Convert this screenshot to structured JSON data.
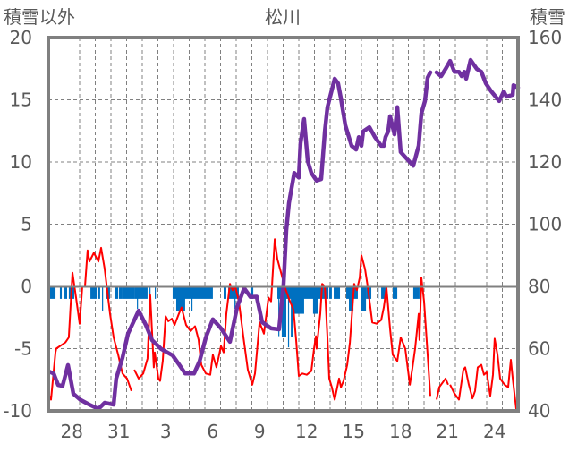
{
  "chart_data": {
    "type": "line",
    "title": "松川",
    "ylabel_left": "積雪以外",
    "ylabel_right": "積雪",
    "ylim_left": [
      -10,
      20
    ],
    "ylim_right": [
      40,
      160
    ],
    "yticks_left": [
      "20",
      "15",
      "10",
      "5",
      "0",
      "-5",
      "-10"
    ],
    "yticks_right": [
      "160",
      "140",
      "120",
      "100",
      "80",
      "60",
      "40"
    ],
    "x_range_days": [
      0,
      30
    ],
    "x_ticks": [
      {
        "pos": 1.5,
        "label": "28"
      },
      {
        "pos": 4.5,
        "label": "31"
      },
      {
        "pos": 7.5,
        "label": "3"
      },
      {
        "pos": 10.5,
        "label": "6"
      },
      {
        "pos": 13.5,
        "label": "9"
      },
      {
        "pos": 16.5,
        "label": "12"
      },
      {
        "pos": 19.5,
        "label": "15"
      },
      {
        "pos": 22.5,
        "label": "18"
      },
      {
        "pos": 25.5,
        "label": "21"
      },
      {
        "pos": 28.5,
        "label": "24"
      }
    ],
    "grid": true,
    "colors": {
      "temperature": "#ff0000",
      "snow_depth": "#7030a0",
      "precipitation": "#0070c0",
      "axis": "#808080"
    },
    "temperature": [
      [
        0,
        -8.6
      ],
      [
        0.17,
        -9.1
      ],
      [
        0.46,
        -5.3
      ],
      [
        0.51,
        -5
      ],
      [
        1.09,
        -4.5
      ],
      [
        1.31,
        -4.1
      ],
      [
        1.54,
        1.1
      ],
      [
        1.77,
        -0.9
      ],
      [
        2,
        -3
      ],
      [
        2.17,
        0
      ],
      [
        2.34,
        0
      ],
      [
        2.51,
        2.9
      ],
      [
        2.63,
        2
      ],
      [
        2.91,
        2.7
      ],
      [
        3.2,
        2
      ],
      [
        3.37,
        3.1
      ],
      [
        3.6,
        1.4
      ],
      [
        3.94,
        -2.2
      ],
      [
        4.17,
        -4.1
      ],
      [
        4.46,
        -5.5
      ],
      [
        4.74,
        -7
      ],
      [
        5.03,
        -7.4
      ],
      [
        5.31,
        -8.4
      ],
      null,
      [
        5.49,
        -6.7
      ],
      [
        5.77,
        -7.4
      ],
      [
        6.06,
        -7
      ],
      [
        6.34,
        -5.8
      ],
      [
        6.51,
        -0.7
      ],
      [
        6.74,
        -6.5
      ],
      [
        6.8,
        -5.3
      ],
      [
        7.03,
        -7.4
      ],
      [
        7.14,
        -7.6
      ],
      [
        7.31,
        -6
      ],
      [
        7.49,
        -2.4
      ],
      [
        7.66,
        -2.8
      ],
      [
        7.89,
        -2.6
      ],
      [
        8.06,
        -3.1
      ],
      [
        8.34,
        -2.2
      ],
      [
        8.51,
        -1.7
      ],
      [
        8.8,
        -3.1
      ],
      [
        9.09,
        -3.6
      ],
      [
        9.37,
        -3.2
      ],
      [
        9.6,
        -4.3
      ],
      [
        9.77,
        -6.3
      ],
      [
        10.06,
        -7
      ],
      [
        10.34,
        -7.1
      ],
      [
        10.51,
        -5.5
      ],
      [
        10.74,
        -6.5
      ],
      [
        11.03,
        -4.8
      ],
      [
        11.2,
        -5.3
      ],
      [
        11.37,
        -2.2
      ],
      [
        11.6,
        0.2
      ],
      [
        11.77,
        -0.3
      ],
      [
        11.94,
        0
      ],
      [
        12.17,
        -1.2
      ],
      [
        12.46,
        -4.1
      ],
      [
        12.74,
        -6.7
      ],
      [
        13.03,
        -7.9
      ],
      [
        13.2,
        -7
      ],
      [
        13.49,
        -2.9
      ],
      [
        13.77,
        -3.8
      ],
      [
        14.06,
        -0.9
      ],
      [
        14.23,
        -1.2
      ],
      [
        14.46,
        3.8
      ],
      [
        14.63,
        2.2
      ],
      [
        14.91,
        0.9
      ],
      [
        15.09,
        0
      ],
      [
        15.37,
        -1
      ],
      [
        15.66,
        -1.9
      ],
      [
        15.83,
        -4.3
      ],
      [
        16,
        -7.2
      ],
      [
        16.23,
        -7
      ],
      [
        16.51,
        -7.1
      ],
      [
        16.8,
        -6.8
      ],
      [
        16.97,
        -5
      ],
      [
        17.09,
        -4
      ],
      [
        17.14,
        -5
      ],
      [
        17.37,
        -2.2
      ],
      [
        17.49,
        0.2
      ],
      [
        17.66,
        0
      ],
      [
        17.83,
        -4.1
      ],
      [
        17.94,
        -7.4
      ],
      [
        18.11,
        -8.1
      ],
      [
        18.29,
        -9.1
      ],
      [
        18.57,
        -7.4
      ],
      [
        18.69,
        -8.1
      ],
      [
        18.86,
        -7.6
      ],
      [
        19.09,
        -6.3
      ],
      [
        19.26,
        -4.5
      ],
      [
        19.54,
        0.2
      ],
      [
        19.71,
        -0.3
      ],
      [
        19.89,
        0.7
      ],
      [
        20,
        2.5
      ],
      [
        20.23,
        1.4
      ],
      [
        20.4,
        0
      ],
      [
        20.69,
        -2.9
      ],
      [
        20.97,
        -3
      ],
      [
        21.26,
        -2.7
      ],
      [
        21.43,
        -1.7
      ],
      [
        21.6,
        -0.1
      ],
      [
        21.83,
        -3.4
      ],
      [
        22,
        -5.5
      ],
      [
        22.29,
        -6
      ],
      [
        22.51,
        -4.1
      ],
      [
        22.8,
        -5
      ],
      [
        23.09,
        -7.9
      ],
      [
        23.26,
        -6.5
      ],
      [
        23.43,
        -5
      ],
      [
        23.66,
        -2.2
      ],
      [
        23.71,
        -4.3
      ],
      [
        23.83,
        0.7
      ],
      [
        24,
        -1.2
      ],
      [
        24.23,
        -5.5
      ],
      [
        24.4,
        -8.8
      ],
      null,
      [
        24.8,
        -9.1
      ],
      [
        24.97,
        -8.1
      ],
      [
        25.37,
        -7.4
      ],
      [
        25.54,
        -7.9
      ],
      null,
      [
        25.66,
        -7.9
      ],
      [
        25.94,
        -8.6
      ],
      [
        26.23,
        -9.1
      ],
      [
        26.51,
        -6.7
      ],
      [
        26.63,
        -6.5
      ],
      [
        26.86,
        -7.9
      ],
      [
        27.09,
        -9
      ],
      [
        27.26,
        -8.4
      ],
      [
        27.43,
        -6.5
      ],
      [
        27.66,
        -6.3
      ],
      [
        27.83,
        -7.1
      ],
      [
        28,
        -6.9
      ],
      [
        28.23,
        -8.8
      ],
      [
        28.4,
        -7.1
      ],
      [
        28.51,
        -4.2
      ],
      [
        28.69,
        -5.5
      ],
      [
        28.86,
        -7.4
      ],
      [
        29.14,
        -7.9
      ],
      [
        29.37,
        -8.1
      ],
      [
        29.54,
        -5.9
      ],
      [
        29.66,
        -7.4
      ],
      [
        29.89,
        -9.9
      ],
      [
        30,
        -9.9
      ]
    ],
    "snow_depth": [
      [
        0.06,
        52.6
      ],
      [
        0.34,
        52
      ],
      [
        0.63,
        48.3
      ],
      [
        0.91,
        48
      ],
      [
        1.26,
        54.7
      ],
      [
        1.6,
        45.5
      ],
      [
        2.06,
        43.5
      ],
      [
        2.63,
        42
      ],
      [
        3.2,
        40.6
      ],
      [
        3.6,
        42.6
      ],
      [
        4.17,
        42
      ],
      [
        4.34,
        50.4
      ],
      [
        4.74,
        57
      ],
      [
        5.09,
        64.8
      ],
      [
        5.77,
        72.2
      ],
      [
        6.23,
        67.6
      ],
      [
        6.63,
        62.7
      ],
      [
        7.2,
        59.9
      ],
      [
        7.94,
        57.8
      ],
      [
        8.34,
        55
      ],
      [
        8.74,
        52
      ],
      [
        9.31,
        52
      ],
      [
        9.66,
        56
      ],
      [
        10.06,
        63.6
      ],
      [
        10.51,
        69.4
      ],
      [
        11.03,
        66.5
      ],
      [
        11.6,
        62.2
      ],
      [
        12.06,
        73.4
      ],
      [
        12.51,
        79.4
      ],
      [
        12.91,
        76.6
      ],
      [
        13.31,
        76.7
      ],
      [
        13.66,
        68.5
      ],
      [
        14.23,
        66.5
      ],
      [
        14.74,
        66.2
      ],
      [
        15.03,
        80.9
      ],
      [
        15.2,
        98
      ],
      [
        15.37,
        106.8
      ],
      [
        15.71,
        116.5
      ],
      [
        16,
        115
      ],
      [
        16.11,
        126
      ],
      [
        16.34,
        133.8
      ],
      [
        16.57,
        120.3
      ],
      [
        16.8,
        116.5
      ],
      [
        17.14,
        114
      ],
      [
        17.43,
        114.5
      ],
      [
        17.66,
        129.8
      ],
      [
        17.83,
        137.6
      ],
      [
        18.29,
        146.8
      ],
      [
        18.51,
        145.3
      ],
      [
        18.69,
        140.4
      ],
      [
        18.97,
        131.8
      ],
      [
        19.37,
        125.2
      ],
      [
        19.66,
        124
      ],
      [
        19.83,
        128
      ],
      [
        20,
        125.2
      ],
      [
        20.11,
        129.8
      ],
      [
        20.51,
        131.2
      ],
      [
        20.86,
        128
      ],
      [
        21.26,
        125.2
      ],
      [
        21.43,
        125.2
      ],
      [
        21.54,
        128
      ],
      [
        21.71,
        129.8
      ],
      [
        21.83,
        134.7
      ],
      [
        22.11,
        128.9
      ],
      [
        22.29,
        137.6
      ],
      [
        22.51,
        123.2
      ],
      [
        22.86,
        121.2
      ],
      [
        23.31,
        118.8
      ],
      [
        23.66,
        125.2
      ],
      [
        23.83,
        135.6
      ],
      [
        24.06,
        139.6
      ],
      [
        24.23,
        147.1
      ],
      [
        24.4,
        148.8
      ],
      null,
      [
        24.8,
        148.8
      ],
      [
        25.09,
        147.6
      ],
      [
        25.37,
        149.9
      ],
      [
        25.66,
        152.5
      ],
      [
        25.94,
        149
      ],
      [
        26.23,
        149
      ],
      [
        26.4,
        147.6
      ],
      [
        26.57,
        149
      ],
      [
        26.69,
        146.8
      ],
      [
        26.97,
        152.8
      ],
      [
        27.37,
        149.9
      ],
      [
        27.66,
        149
      ],
      [
        27.94,
        145.3
      ],
      [
        28.29,
        142.7
      ],
      [
        28.8,
        139.6
      ],
      [
        29.09,
        142.7
      ],
      [
        29.26,
        141
      ],
      [
        29.66,
        141.6
      ],
      [
        29.71,
        144.7
      ],
      [
        30,
        143.9
      ]
    ],
    "precipitation_bars": [
      [
        0,
        0.46,
        -1
      ],
      [
        0,
        0.06,
        -3
      ],
      [
        0.74,
        0.86,
        -1
      ],
      [
        1.03,
        1.2,
        -1
      ],
      [
        1.31,
        1.43,
        -1
      ],
      [
        1.54,
        1.66,
        -1
      ],
      [
        2.69,
        3.09,
        -1
      ],
      [
        3.2,
        3.31,
        -1
      ],
      [
        3.43,
        3.5,
        -2
      ],
      [
        3.71,
        3.94,
        -1
      ],
      [
        4.23,
        4.46,
        -1
      ],
      [
        4.51,
        4.74,
        -1
      ],
      [
        4.8,
        5.49,
        -1
      ],
      [
        5.49,
        6.34,
        -1
      ],
      [
        5.66,
        5.71,
        -1.8
      ],
      [
        6.46,
        6.51,
        -1
      ],
      [
        6.8,
        6.86,
        -1
      ],
      [
        7.94,
        10.51,
        -1
      ],
      [
        8.17,
        8.74,
        -2
      ],
      [
        9.14,
        9.2,
        -2
      ],
      [
        11.2,
        11.37,
        -1
      ],
      [
        11.49,
        12.17,
        -1
      ],
      [
        11.89,
        11.94,
        -1.8
      ],
      [
        12.91,
        13.09,
        -1
      ],
      [
        14.63,
        14.8,
        -1
      ],
      [
        14.69,
        14.74,
        -4
      ],
      [
        14.8,
        17.89,
        -1
      ],
      [
        14.91,
        15.2,
        -4.1
      ],
      [
        15.31,
        15.37,
        -4.9
      ],
      [
        15.49,
        15.6,
        -4.1
      ],
      [
        15.6,
        16.34,
        -2.2
      ],
      [
        16.91,
        17.2,
        -2.2
      ],
      [
        17.94,
        18.11,
        -1
      ],
      [
        18.23,
        18.63,
        -1
      ],
      [
        19.03,
        19.77,
        -1
      ],
      [
        19.2,
        19.49,
        -2
      ],
      [
        20,
        20.29,
        -2
      ],
      [
        20.29,
        20.63,
        -1
      ],
      [
        21.03,
        21.09,
        -1
      ],
      [
        21.26,
        21.54,
        -1
      ],
      [
        22,
        22.29,
        -1
      ],
      [
        23.31,
        23.71,
        -1
      ]
    ]
  }
}
